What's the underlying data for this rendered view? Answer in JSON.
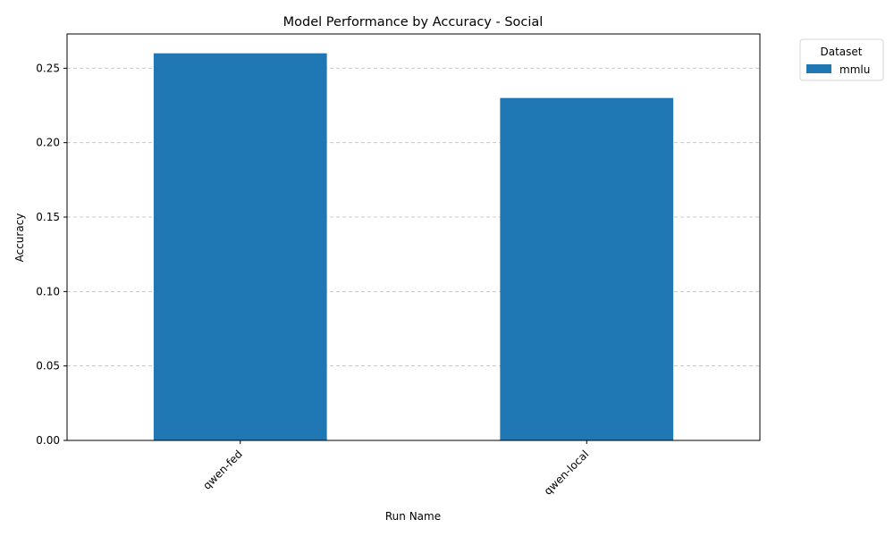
{
  "chart_data": {
    "type": "bar",
    "title": "Model Performance by Accuracy - Social",
    "xlabel": "Run Name",
    "ylabel": "Accuracy",
    "categories": [
      "qwen-fed",
      "qwen-local"
    ],
    "series": [
      {
        "name": "mmlu",
        "values": [
          0.26,
          0.23
        ]
      }
    ],
    "ylim": [
      0,
      0.273
    ],
    "yticks": [
      0.0,
      0.05,
      0.1,
      0.15,
      0.2,
      0.25
    ],
    "ytick_labels": [
      "0.00",
      "0.05",
      "0.10",
      "0.15",
      "0.20",
      "0.25"
    ],
    "grid": "y-dashed",
    "legend": {
      "title": "Dataset",
      "placement": "outside-top-right"
    },
    "colors": {
      "bar": "#1f77b4",
      "grid": "#c8c8c8",
      "axis": "#000000"
    }
  }
}
